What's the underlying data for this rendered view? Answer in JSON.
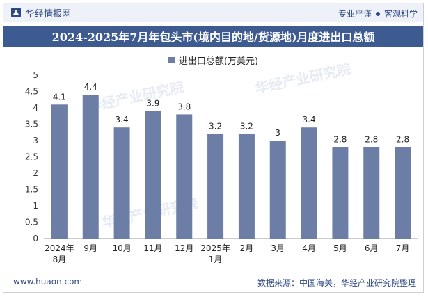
{
  "header": {
    "brand": "华经情报网",
    "tag1": "专业严谨",
    "tag2": "客观科学"
  },
  "chart_data": {
    "type": "bar",
    "title": "2024-2025年7月年包头市(境内目的地/货源地)月度进出口总额",
    "legend": "进出口总额(万美元)",
    "categories": [
      "2024年8月",
      "9月",
      "10月",
      "11月",
      "12月",
      "2025年1月",
      "2月",
      "3月",
      "4月",
      "5月",
      "6月",
      "7月"
    ],
    "category_lines": [
      [
        "2024年",
        "8月"
      ],
      [
        "9月"
      ],
      [
        "10月"
      ],
      [
        "11月"
      ],
      [
        "12月"
      ],
      [
        "2025年",
        "1月"
      ],
      [
        "2月"
      ],
      [
        "3月"
      ],
      [
        "4月"
      ],
      [
        "5月"
      ],
      [
        "6月"
      ],
      [
        "7月"
      ]
    ],
    "values": [
      4.1,
      4.4,
      3.4,
      3.9,
      3.8,
      3.2,
      3.2,
      3,
      3.4,
      2.8,
      2.8,
      2.8
    ],
    "value_labels": [
      "4.1",
      "4.4",
      "3.4",
      "3.9",
      "3.8",
      "3.2",
      "3.2",
      "3",
      "3.4",
      "2.8",
      "2.8",
      "2.8"
    ],
    "yticks": [
      "0",
      "0.5",
      "1",
      "1.5",
      "2",
      "2.5",
      "3",
      "3.5",
      "4",
      "4.5",
      "5"
    ],
    "ylim": [
      0,
      5
    ],
    "bar_color": "#6c7ea6"
  },
  "footer": {
    "website": "www.huaon.com",
    "source": "数据来源：中国海关，华经产业研究院整理"
  }
}
